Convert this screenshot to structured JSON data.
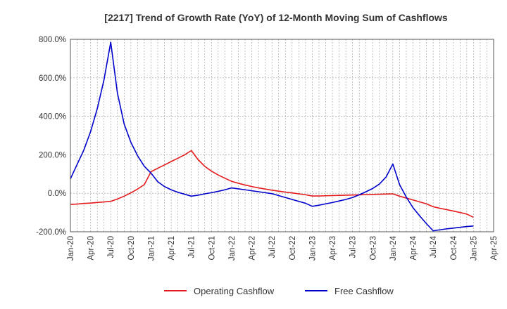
{
  "chart_data": {
    "type": "line",
    "title": "[2217]  Trend of Growth Rate (YoY) of 12-Month Moving Sum of Cashflows",
    "xlabel": "",
    "ylabel": "",
    "x_ticks": [
      "Jan-20",
      "Apr-20",
      "Jul-20",
      "Oct-20",
      "Jan-21",
      "Apr-21",
      "Jul-21",
      "Oct-21",
      "Jan-22",
      "Apr-22",
      "Jul-22",
      "Oct-22",
      "Jan-23",
      "Apr-23",
      "Jul-23",
      "Oct-23",
      "Jan-24",
      "Apr-24",
      "Jul-24",
      "Oct-24",
      "Jan-25",
      "Apr-25"
    ],
    "y_ticks": [
      "800.0%",
      "600.0%",
      "400.0%",
      "200.0%",
      "0.0%",
      "-200.0%"
    ],
    "ylim": [
      -200,
      800
    ],
    "y_unit": "%",
    "grid": true,
    "legend_position": "bottom",
    "series": [
      {
        "name": "Operating Cashflow",
        "color": "#e41a1c",
        "points": [
          [
            "2020-01",
            -58
          ],
          [
            "2020-02",
            -56
          ],
          [
            "2020-03",
            -53
          ],
          [
            "2020-04",
            -51
          ],
          [
            "2020-05",
            -48
          ],
          [
            "2020-06",
            -45
          ],
          [
            "2020-07",
            -42
          ],
          [
            "2020-08",
            -30
          ],
          [
            "2020-09",
            -15
          ],
          [
            "2020-10",
            2
          ],
          [
            "2020-11",
            22
          ],
          [
            "2020-12",
            45
          ],
          [
            "2021-01",
            112
          ],
          [
            "2021-02",
            130
          ],
          [
            "2021-03",
            147
          ],
          [
            "2021-04",
            165
          ],
          [
            "2021-05",
            182
          ],
          [
            "2021-06",
            200
          ],
          [
            "2021-07",
            222
          ],
          [
            "2021-08",
            175
          ],
          [
            "2021-09",
            140
          ],
          [
            "2021-10",
            115
          ],
          [
            "2021-11",
            95
          ],
          [
            "2021-12",
            78
          ],
          [
            "2022-01",
            62
          ],
          [
            "2022-02",
            52
          ],
          [
            "2022-03",
            43
          ],
          [
            "2022-04",
            35
          ],
          [
            "2022-05",
            28
          ],
          [
            "2022-06",
            22
          ],
          [
            "2022-07",
            16
          ],
          [
            "2022-08",
            11
          ],
          [
            "2022-09",
            6
          ],
          [
            "2022-10",
            2
          ],
          [
            "2022-11",
            -3
          ],
          [
            "2022-12",
            -8
          ],
          [
            "2023-01",
            -14
          ],
          [
            "2023-02",
            -14
          ],
          [
            "2023-03",
            -13
          ],
          [
            "2023-04",
            -12
          ],
          [
            "2023-05",
            -11
          ],
          [
            "2023-06",
            -10
          ],
          [
            "2023-07",
            -9
          ],
          [
            "2023-08",
            -8
          ],
          [
            "2023-09",
            -7
          ],
          [
            "2023-10",
            -6
          ],
          [
            "2023-11",
            -5
          ],
          [
            "2023-12",
            -4
          ],
          [
            "2024-01",
            -3
          ],
          [
            "2024-02",
            -15
          ],
          [
            "2024-03",
            -25
          ],
          [
            "2024-04",
            -35
          ],
          [
            "2024-05",
            -45
          ],
          [
            "2024-06",
            -55
          ],
          [
            "2024-07",
            -70
          ],
          [
            "2024-08",
            -78
          ],
          [
            "2024-09",
            -85
          ],
          [
            "2024-10",
            -92
          ],
          [
            "2024-11",
            -100
          ],
          [
            "2024-12",
            -108
          ],
          [
            "2025-01",
            -125
          ]
        ]
      },
      {
        "name": "Free Cashflow",
        "color": "#0000cc",
        "points": [
          [
            "2020-01",
            75
          ],
          [
            "2020-02",
            150
          ],
          [
            "2020-03",
            225
          ],
          [
            "2020-04",
            320
          ],
          [
            "2020-05",
            440
          ],
          [
            "2020-06",
            590
          ],
          [
            "2020-07",
            785
          ],
          [
            "2020-08",
            520
          ],
          [
            "2020-09",
            360
          ],
          [
            "2020-10",
            265
          ],
          [
            "2020-11",
            195
          ],
          [
            "2020-12",
            140
          ],
          [
            "2021-01",
            105
          ],
          [
            "2021-02",
            60
          ],
          [
            "2021-03",
            35
          ],
          [
            "2021-04",
            18
          ],
          [
            "2021-05",
            5
          ],
          [
            "2021-06",
            -5
          ],
          [
            "2021-07",
            -15
          ],
          [
            "2021-08",
            -10
          ],
          [
            "2021-09",
            -3
          ],
          [
            "2021-10",
            3
          ],
          [
            "2021-11",
            10
          ],
          [
            "2021-12",
            18
          ],
          [
            "2022-01",
            28
          ],
          [
            "2022-02",
            23
          ],
          [
            "2022-03",
            18
          ],
          [
            "2022-04",
            13
          ],
          [
            "2022-05",
            8
          ],
          [
            "2022-06",
            3
          ],
          [
            "2022-07",
            -2
          ],
          [
            "2022-08",
            -12
          ],
          [
            "2022-09",
            -22
          ],
          [
            "2022-10",
            -32
          ],
          [
            "2022-11",
            -42
          ],
          [
            "2022-12",
            -52
          ],
          [
            "2023-01",
            -68
          ],
          [
            "2023-02",
            -62
          ],
          [
            "2023-03",
            -55
          ],
          [
            "2023-04",
            -48
          ],
          [
            "2023-05",
            -40
          ],
          [
            "2023-06",
            -32
          ],
          [
            "2023-07",
            -22
          ],
          [
            "2023-08",
            -8
          ],
          [
            "2023-09",
            8
          ],
          [
            "2023-10",
            25
          ],
          [
            "2023-11",
            48
          ],
          [
            "2023-12",
            85
          ],
          [
            "2024-01",
            152
          ],
          [
            "2024-02",
            45
          ],
          [
            "2024-03",
            -20
          ],
          [
            "2024-04",
            -75
          ],
          [
            "2024-05",
            -118
          ],
          [
            "2024-06",
            -158
          ],
          [
            "2024-07",
            -195
          ],
          [
            "2024-08",
            -190
          ],
          [
            "2024-09",
            -185
          ],
          [
            "2024-10",
            -181
          ],
          [
            "2024-11",
            -177
          ],
          [
            "2024-12",
            -173
          ],
          [
            "2025-01",
            -170
          ]
        ]
      }
    ]
  }
}
